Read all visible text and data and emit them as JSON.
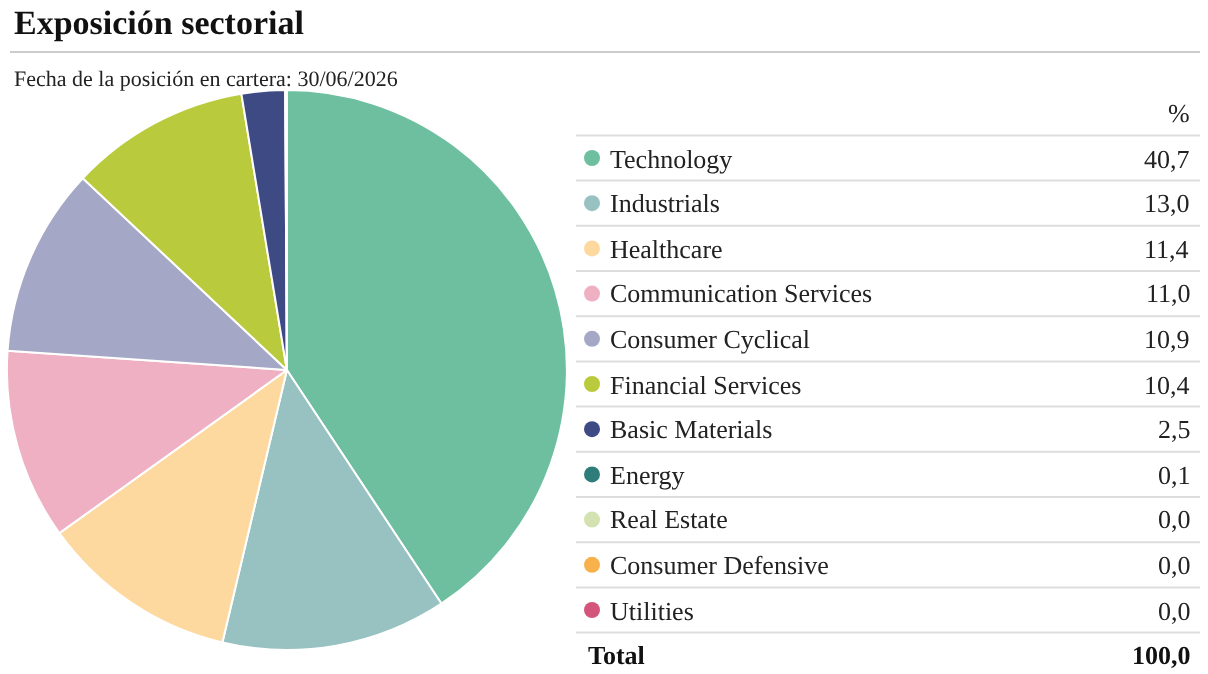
{
  "chart_data": {
    "type": "pie",
    "title": "Exposición sectorial",
    "subtitle": "Fecha de la posición en cartera: 30/06/2026",
    "categories": [
      "Technology",
      "Industrials",
      "Healthcare",
      "Communication Services",
      "Consumer Cyclical",
      "Financial Services",
      "Basic Materials",
      "Energy",
      "Real Estate",
      "Consumer Defensive",
      "Utilities"
    ],
    "values": [
      40.7,
      13.0,
      11.4,
      11.0,
      10.9,
      10.4,
      2.5,
      0.1,
      0.0,
      0.0,
      0.0
    ],
    "value_labels": [
      "40,7",
      "13,0",
      "11,4",
      "11,0",
      "10,9",
      "10,4",
      "2,5",
      "0,1",
      "0,0",
      "0,0",
      "0,0"
    ],
    "colors": [
      "#6dbfa0",
      "#98c1c1",
      "#fdd9a0",
      "#efb0c4",
      "#a4a8c6",
      "#b9ca3c",
      "#3e4a84",
      "#2e7d7a",
      "#d3e2b0",
      "#f8b14b",
      "#d4557b"
    ],
    "annotations": [
      "%",
      "Total",
      "100,0"
    ],
    "legend": "right"
  }
}
